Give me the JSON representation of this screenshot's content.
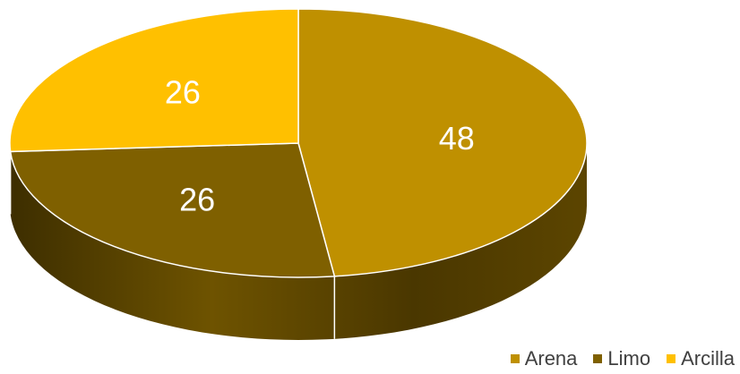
{
  "chart_data": {
    "type": "pie",
    "title": "",
    "categories": [
      "Arena",
      "Limo",
      "Arcilla"
    ],
    "values": [
      48,
      26,
      26
    ],
    "colors": [
      "#bf9000",
      "#7f6000",
      "#ffc000"
    ],
    "side_colors": [
      "#5a4200",
      "#4a3600",
      "#8a6a00"
    ],
    "data_labels": [
      "48",
      "26",
      "26"
    ],
    "legend_position": "bottom-right",
    "style": "3d"
  },
  "legend": {
    "items": [
      {
        "label": "Arena",
        "color": "#bf9000"
      },
      {
        "label": "Limo",
        "color": "#7f6000"
      },
      {
        "label": "Arcilla",
        "color": "#ffc000"
      }
    ]
  }
}
